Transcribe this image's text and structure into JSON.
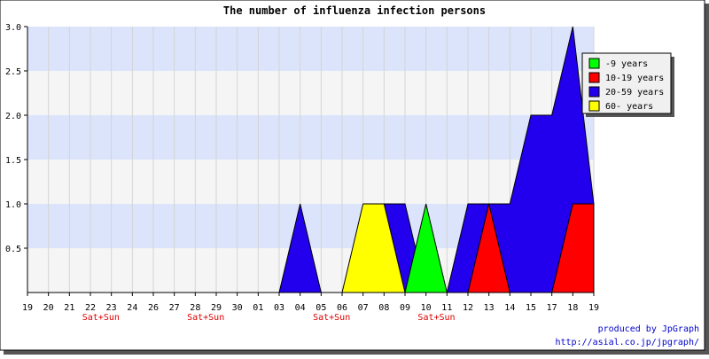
{
  "chart_data": {
    "type": "area",
    "title": "The number of influenza infection persons",
    "xlabel": "",
    "ylabel": "",
    "ylim": [
      0,
      3
    ],
    "y_ticks": [
      "0.5",
      "1.0",
      "1.5",
      "2.0",
      "2.5",
      "3.0"
    ],
    "grid": true,
    "legend_position": "top-right",
    "categories": [
      "19",
      "20",
      "21",
      "22",
      "23",
      "24",
      "26",
      "27",
      "28",
      "29",
      "30",
      "01",
      "03",
      "04",
      "05",
      "06",
      "07",
      "08",
      "09",
      "10",
      "11",
      "12",
      "13",
      "14",
      "15",
      "17",
      "18",
      "19"
    ],
    "weekend_labels": [
      {
        "after_category_index": 3,
        "text": "Sat+Sun"
      },
      {
        "after_category_index": 8,
        "text": "Sat+Sun"
      },
      {
        "after_category_index": 14,
        "text": "Sat+Sun"
      },
      {
        "after_category_index": 19,
        "text": "Sat+Sun"
      }
    ],
    "series": [
      {
        "name": "-9 years",
        "color": "#00ff00",
        "values": [
          0,
          0,
          0,
          0,
          0,
          0,
          0,
          0,
          0,
          0,
          0,
          0,
          0,
          0,
          0,
          0,
          0,
          0,
          0,
          1,
          0,
          0,
          0,
          0,
          0,
          0,
          0,
          0
        ]
      },
      {
        "name": "10-19 years",
        "color": "#ff0000",
        "values": [
          0,
          0,
          0,
          0,
          0,
          0,
          0,
          0,
          0,
          0,
          0,
          0,
          0,
          0,
          0,
          0,
          0,
          0,
          0,
          0,
          0,
          0,
          1,
          0,
          0,
          0,
          1,
          1
        ]
      },
      {
        "name": "20-59 years",
        "color": "#2200ee",
        "values": [
          0,
          0,
          0,
          0,
          0,
          0,
          0,
          0,
          0,
          0,
          0,
          0,
          0,
          1,
          0,
          0,
          0,
          1,
          1,
          0,
          0,
          1,
          1,
          1,
          2,
          2,
          3,
          1
        ]
      },
      {
        "name": "60- years",
        "color": "#ffff00",
        "values": [
          0,
          0,
          0,
          0,
          0,
          0,
          0,
          0,
          0,
          0,
          0,
          0,
          0,
          0,
          0,
          0,
          1,
          1,
          0,
          0,
          0,
          0,
          0,
          0,
          0,
          0,
          0,
          0
        ]
      }
    ],
    "draw_order": [
      2,
      3,
      0,
      1
    ],
    "colors": {
      "band_blue": "#dbe4fb",
      "band_grey": "#f5f5f5",
      "weekend_text": "#dd0000",
      "footer_text": "#0000cc"
    }
  },
  "footer": {
    "line1": "produced by JpGraph",
    "line2": "http://asial.co.jp/jpgraph/"
  }
}
